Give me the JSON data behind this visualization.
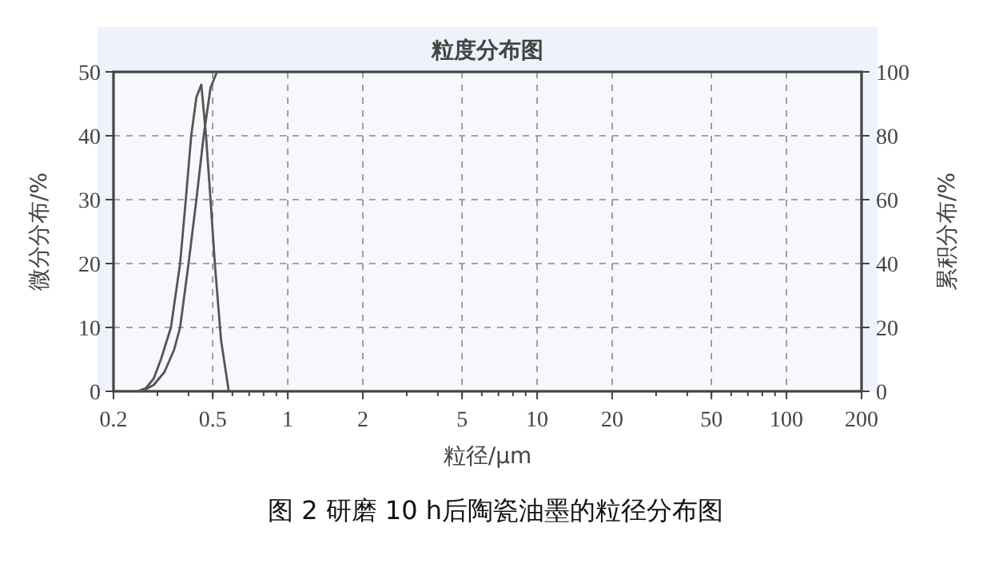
{
  "chart_data": {
    "type": "line",
    "title": "粒度分布图",
    "xlabel": "粒径/μm",
    "ylabel": "微分分布/%",
    "y2label": "累积分布/%",
    "annotations": [
      "图 2  研磨 10 h后陶瓷油墨的粒径分布图"
    ],
    "log": "x",
    "grid": true,
    "line_style": "solid",
    "marker": "none",
    "xlim": [
      0.2,
      200
    ],
    "xticks": [
      0.2,
      0.5,
      1,
      2,
      5,
      10,
      20,
      50,
      100,
      200
    ],
    "ylim": [
      0,
      50
    ],
    "yticks": [
      0,
      10,
      20,
      30,
      40,
      50
    ],
    "y2lim": [
      0,
      100
    ],
    "y2ticks": [
      0,
      20,
      40,
      60,
      80,
      100
    ],
    "series": [
      {
        "color": "#555555",
        "x": [
          0.25,
          0.27,
          0.29,
          0.31,
          0.34,
          0.37,
          0.39,
          0.41,
          0.43,
          0.45,
          0.47,
          0.49,
          0.51,
          0.54,
          0.58
        ],
        "values": [
          0,
          0.5,
          2,
          5,
          10,
          20,
          30,
          40,
          46,
          48,
          40,
          30,
          20,
          8,
          0
        ]
      },
      {
        "color": "#555555",
        "axis": "y2",
        "x": [
          0.26,
          0.29,
          0.32,
          0.35,
          0.37,
          0.4,
          0.43,
          0.46,
          0.49,
          0.52
        ],
        "values": [
          0,
          2,
          6,
          13,
          20,
          40,
          60,
          80,
          95,
          100
        ]
      }
    ]
  }
}
